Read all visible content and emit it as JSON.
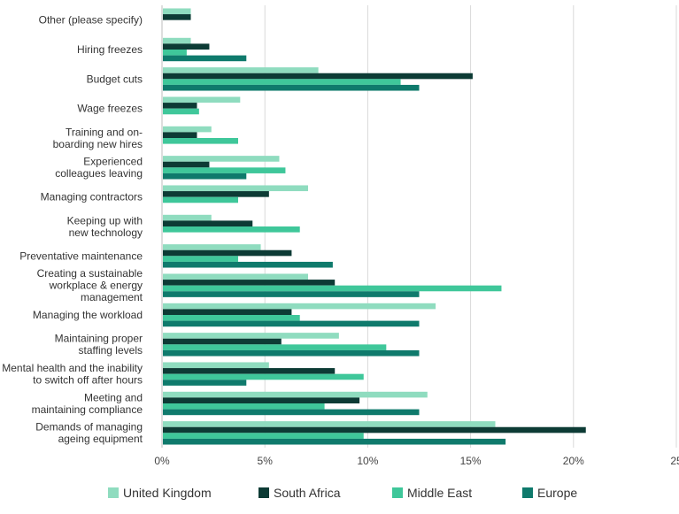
{
  "chart_data": {
    "type": "bar",
    "orientation": "horizontal",
    "categories": [
      [
        "Other (please specify)"
      ],
      [
        "Hiring freezes"
      ],
      [
        "Budget cuts"
      ],
      [
        "Wage freezes"
      ],
      [
        "Training and on-",
        "boarding new hires"
      ],
      [
        "Experienced",
        "colleagues leaving"
      ],
      [
        "Managing contractors"
      ],
      [
        "Keeping up with",
        "new technology"
      ],
      [
        "Preventative maintenance"
      ],
      [
        "Creating a sustainable",
        "workplace & energy",
        "management"
      ],
      [
        "Managing the workload"
      ],
      [
        "Maintaining proper",
        "staffing levels"
      ],
      [
        "Mental health and the inability",
        "to switch off after hours"
      ],
      [
        "Meeting and",
        "maintaining compliance"
      ],
      [
        "Demands of managing",
        "ageing equipment"
      ]
    ],
    "series": [
      {
        "name": "United Kingdom",
        "color": "#8fdcbf",
        "values": [
          1.4,
          1.4,
          7.6,
          3.8,
          2.4,
          5.7,
          7.1,
          2.4,
          4.8,
          7.1,
          13.3,
          8.6,
          5.2,
          12.9,
          16.2
        ]
      },
      {
        "name": "South Africa",
        "color": "#0d3b35",
        "values": [
          1.4,
          2.3,
          15.1,
          1.7,
          1.7,
          2.3,
          5.2,
          4.4,
          6.3,
          8.4,
          6.3,
          5.8,
          8.4,
          9.6,
          20.6
        ]
      },
      {
        "name": "Middle East",
        "color": "#3fc79a",
        "values": [
          0,
          1.2,
          11.6,
          1.8,
          3.7,
          6.0,
          3.7,
          6.7,
          3.7,
          16.5,
          6.7,
          10.9,
          9.8,
          7.9,
          9.8
        ]
      },
      {
        "name": "Europe",
        "color": "#0f7a6c",
        "values": [
          0,
          4.1,
          12.5,
          0,
          0,
          4.1,
          0,
          0,
          8.3,
          12.5,
          12.5,
          12.5,
          4.1,
          12.5,
          16.7
        ]
      }
    ],
    "x_ticks": [
      "0%",
      "5%",
      "10%",
      "15%",
      "20%",
      "25"
    ],
    "xlim": [
      0,
      25
    ],
    "grid": true,
    "legend": "bottom",
    "title": "",
    "xlabel": "",
    "ylabel": ""
  }
}
